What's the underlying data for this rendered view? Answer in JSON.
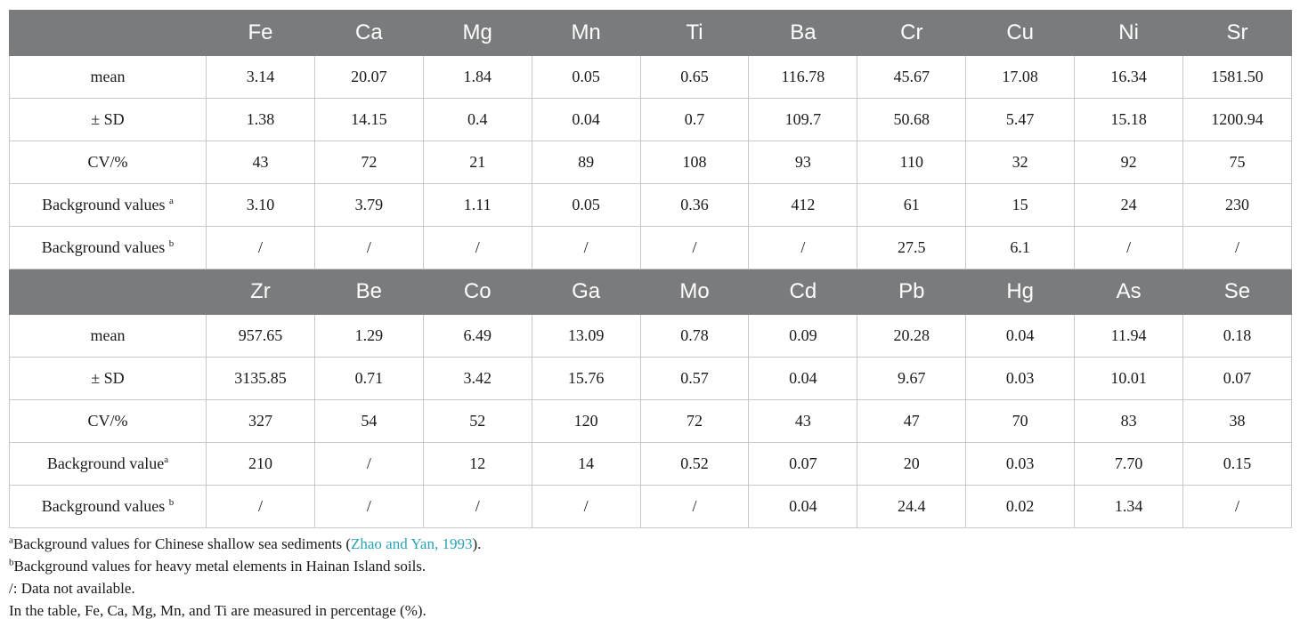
{
  "table1": {
    "headers": [
      "Fe",
      "Ca",
      "Mg",
      "Mn",
      "Ti",
      "Ba",
      "Cr",
      "Cu",
      "Ni",
      "Sr"
    ],
    "rows": [
      {
        "label": "mean",
        "sup": "",
        "values": [
          "3.14",
          "20.07",
          "1.84",
          "0.05",
          "0.65",
          "116.78",
          "45.67",
          "17.08",
          "16.34",
          "1581.50"
        ]
      },
      {
        "label": "± SD",
        "sup": "",
        "values": [
          "1.38",
          "14.15",
          "0.4",
          "0.04",
          "0.7",
          "109.7",
          "50.68",
          "5.47",
          "15.18",
          "1200.94"
        ]
      },
      {
        "label": "CV/%",
        "sup": "",
        "values": [
          "43",
          "72",
          "21",
          "89",
          "108",
          "93",
          "110",
          "32",
          "92",
          "75"
        ]
      },
      {
        "label": "Background values ",
        "sup": "a",
        "values": [
          "3.10",
          "3.79",
          "1.11",
          "0.05",
          "0.36",
          "412",
          "61",
          "15",
          "24",
          "230"
        ]
      },
      {
        "label": "Background values ",
        "sup": "b",
        "values": [
          "/",
          "/",
          "/",
          "/",
          "/",
          "/",
          "27.5",
          "6.1",
          "/",
          "/"
        ]
      }
    ]
  },
  "table2": {
    "headers": [
      "Zr",
      "Be",
      "Co",
      "Ga",
      "Mo",
      "Cd",
      "Pb",
      "Hg",
      "As",
      "Se"
    ],
    "rows": [
      {
        "label": "mean",
        "sup": "",
        "values": [
          "957.65",
          "1.29",
          "6.49",
          "13.09",
          "0.78",
          "0.09",
          "20.28",
          "0.04",
          "11.94",
          "0.18"
        ]
      },
      {
        "label": "± SD",
        "sup": "",
        "values": [
          "3135.85",
          "0.71",
          "3.42",
          "15.76",
          "0.57",
          "0.04",
          "9.67",
          "0.03",
          "10.01",
          "0.07"
        ]
      },
      {
        "label": "CV/%",
        "sup": "",
        "values": [
          "327",
          "54",
          "52",
          "120",
          "72",
          "43",
          "47",
          "70",
          "83",
          "38"
        ]
      },
      {
        "label": "Background value",
        "sup": "a",
        "values": [
          "210",
          "/",
          "12",
          "14",
          "0.52",
          "0.07",
          "20",
          "0.03",
          "7.70",
          "0.15"
        ]
      },
      {
        "label": "Background values ",
        "sup": "b",
        "values": [
          "/",
          "/",
          "/",
          "/",
          "/",
          "0.04",
          "24.4",
          "0.02",
          "1.34",
          "/"
        ]
      }
    ]
  },
  "notes": {
    "a_sup": "a",
    "a_text": "Background values for Chinese shallow sea sediments (",
    "a_link": "Zhao and Yan, 1993",
    "a_end": ").",
    "b_sup": "b",
    "b_text": "Background values for heavy metal elements in Hainan Island soils.",
    "slash": "/: Data not available.",
    "units": "In the table, Fe, Ca, Mg, Mn, and Ti are measured in percentage (%)."
  }
}
